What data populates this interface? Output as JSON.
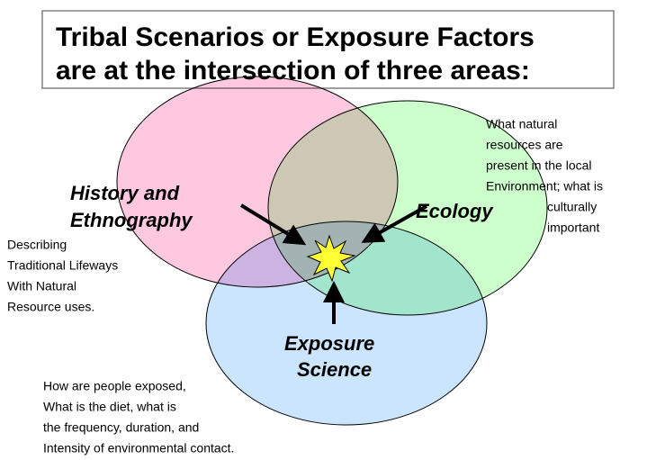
{
  "title": {
    "lines": [
      "Tribal Scenarios or Exposure Factors",
      "are at the intersection of three areas:"
    ]
  },
  "areas": [
    {
      "label": [
        "History and",
        "Ethnography"
      ],
      "description": [
        "Describing",
        "Traditional Lifeways",
        "With Natural",
        "Resource uses."
      ]
    },
    {
      "label": [
        "Ecology"
      ],
      "description": [
        "What natural",
        "resources are",
        "present in the local",
        "Environment; what is",
        "culturally",
        "important"
      ]
    },
    {
      "label": [
        "Exposure",
        "Science"
      ],
      "description": [
        "How are people exposed,",
        "What is the diet, what is",
        "the frequency, duration, and",
        "Intensity of environmental contact."
      ]
    }
  ]
}
